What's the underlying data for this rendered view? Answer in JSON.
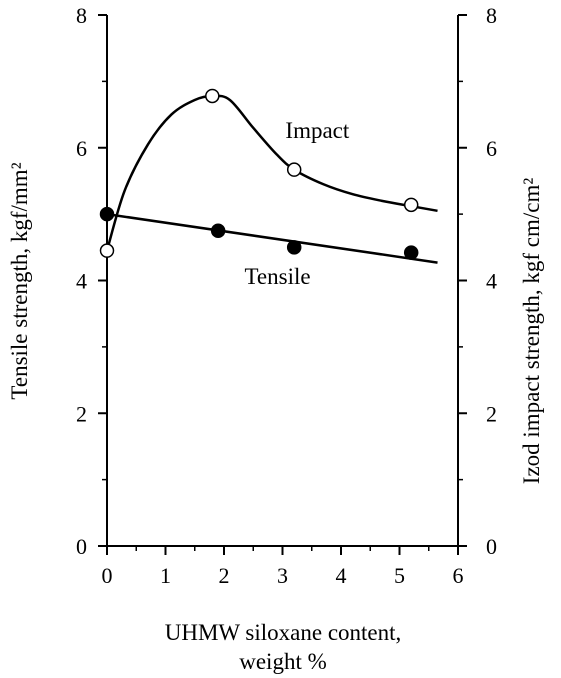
{
  "chart_data": {
    "type": "line",
    "title": "",
    "xlabel_line1": "UHMW siloxane content,",
    "xlabel_line2": "weight %",
    "ylabel_left": "Tensile strength, kgf/mm²",
    "ylabel_right": "Izod impact strength, kgf cm/cm²",
    "xlim": [
      0,
      6
    ],
    "ylim": [
      0,
      8
    ],
    "x_ticks": [
      "0",
      "1",
      "2",
      "3",
      "4",
      "5",
      "6"
    ],
    "y_ticks_left": [
      "0",
      "2",
      "4",
      "6",
      "8"
    ],
    "y_ticks_right": [
      "0",
      "2",
      "4",
      "6",
      "8"
    ],
    "grid": false,
    "series": [
      {
        "name": "Impact",
        "axis": "right",
        "marker": "open-circle",
        "points": [
          {
            "x": 0,
            "y": 4.45
          },
          {
            "x": 1.8,
            "y": 6.78
          },
          {
            "x": 3.2,
            "y": 5.67
          },
          {
            "x": 5.2,
            "y": 5.14
          }
        ],
        "curve": [
          {
            "x": 0,
            "y": 4.45
          },
          {
            "x": 0.3,
            "y": 5.35
          },
          {
            "x": 0.7,
            "y": 6.05
          },
          {
            "x": 1.1,
            "y": 6.5
          },
          {
            "x": 1.5,
            "y": 6.72
          },
          {
            "x": 1.8,
            "y": 6.78
          },
          {
            "x": 2.1,
            "y": 6.72
          },
          {
            "x": 2.5,
            "y": 6.3
          },
          {
            "x": 2.9,
            "y": 5.9
          },
          {
            "x": 3.2,
            "y": 5.67
          },
          {
            "x": 3.7,
            "y": 5.45
          },
          {
            "x": 4.2,
            "y": 5.3
          },
          {
            "x": 4.7,
            "y": 5.2
          },
          {
            "x": 5.2,
            "y": 5.12
          },
          {
            "x": 5.65,
            "y": 5.05
          }
        ],
        "label_pos": {
          "x": 3.05,
          "y": 6.15
        }
      },
      {
        "name": "Tensile",
        "axis": "left",
        "marker": "filled-circle",
        "points": [
          {
            "x": 0,
            "y": 5.0
          },
          {
            "x": 1.9,
            "y": 4.75
          },
          {
            "x": 3.2,
            "y": 4.5
          },
          {
            "x": 5.2,
            "y": 4.42
          }
        ],
        "curve": [
          {
            "x": 0,
            "y": 5.0
          },
          {
            "x": 5.65,
            "y": 4.27
          }
        ],
        "label_pos": {
          "x": 2.35,
          "y": 3.95
        }
      }
    ],
    "colors": {
      "line": "#000000",
      "open_marker_fill": "#ffffff",
      "filled_marker_fill": "#000000"
    }
  }
}
